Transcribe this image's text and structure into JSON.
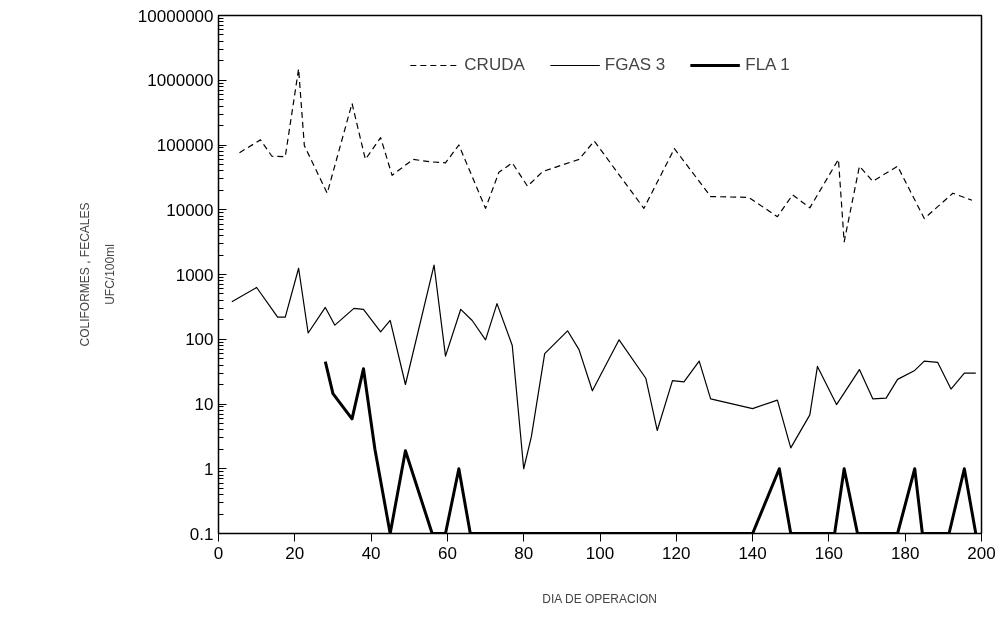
{
  "chart_data": {
    "type": "line",
    "xlabel": "DIA DE OPERACION",
    "ylabel": "COLIFORMES , FECALES",
    "annotations": [
      "UFC/100ml"
    ],
    "xlim": [
      0,
      200
    ],
    "xticks": [
      0,
      20,
      40,
      60,
      80,
      100,
      120,
      140,
      160,
      180,
      200
    ],
    "ylim": [
      0.1,
      10000000
    ],
    "yticks": [
      0.1,
      1,
      10,
      100,
      1000,
      10000,
      100000,
      1000000,
      10000000
    ],
    "log": true,
    "grid": false,
    "legend": "top",
    "marker": "none",
    "series": [
      {
        "name": "CRUDA",
        "color": "#000000",
        "line_style": "dashed",
        "x": [
          5.5,
          11,
          14,
          17.5,
          21,
          22.5,
          28.5,
          35,
          38.5,
          42.5,
          45.5,
          51,
          55.5,
          59.5,
          63,
          70,
          73.5,
          77,
          81,
          85,
          94.5,
          98.5,
          111.5,
          119.5,
          129,
          139,
          146.5,
          150.5,
          155,
          162.5,
          164,
          168,
          171.5,
          178,
          185,
          192.5,
          197.5
        ],
        "values": [
          76000,
          120000,
          67000,
          66000,
          1500000,
          98000,
          18000,
          440000,
          60000,
          130000,
          34000,
          60000,
          55000,
          53000,
          100000,
          10500,
          38000,
          53000,
          23000,
          39000,
          60000,
          115000,
          10500,
          88000,
          16000,
          15500,
          7800,
          17000,
          10700,
          60000,
          3200,
          47000,
          27500,
          47000,
          7300,
          18000,
          14000
        ]
      },
      {
        "name": "FGAS 3",
        "color": "#000000",
        "line_style": "solid",
        "x": [
          3.5,
          10,
          15.5,
          17.5,
          21,
          23.5,
          28,
          30.5,
          35.5,
          38,
          42.5,
          45,
          49,
          56.5,
          59.5,
          63.5,
          66.5,
          70,
          73,
          77,
          80,
          82,
          85.5,
          91.5,
          94.5,
          98,
          105,
          112,
          115,
          119,
          122,
          126,
          129,
          140,
          146.5,
          150,
          155,
          157,
          162,
          168,
          171.5,
          175,
          178,
          182.5,
          185,
          188.5,
          192,
          195.5,
          198.5
        ],
        "values": [
          380,
          630,
          220,
          220,
          1250,
          125,
          310,
          165,
          300,
          290,
          130,
          195,
          20,
          1400,
          55,
          290,
          195,
          98,
          355,
          80,
          1,
          3.1,
          60,
          135,
          69,
          16,
          98,
          25,
          3.9,
          23,
          22,
          46,
          12,
          8.5,
          11.5,
          2.1,
          6.8,
          38,
          9.8,
          34,
          12,
          12.3,
          24,
          33,
          46,
          44,
          17,
          30,
          30
        ]
      },
      {
        "name": "FLA 1",
        "color": "#000000",
        "line_style": "solid",
        "x": [
          28,
          30,
          35,
          38,
          41,
          45,
          49,
          56,
          59.5,
          63,
          66,
          140,
          147,
          150,
          161.5,
          164,
          167.5,
          178,
          182.5,
          184.5,
          191.5,
          195.5,
          198.5
        ],
        "values": [
          45,
          14.5,
          5.9,
          35,
          2,
          0.1,
          1.9,
          0.1,
          0.1,
          1,
          0.1,
          0.1,
          1,
          0.1,
          0.1,
          1,
          0.1,
          0.1,
          1,
          0.1,
          0.1,
          1,
          0.1
        ]
      }
    ]
  }
}
